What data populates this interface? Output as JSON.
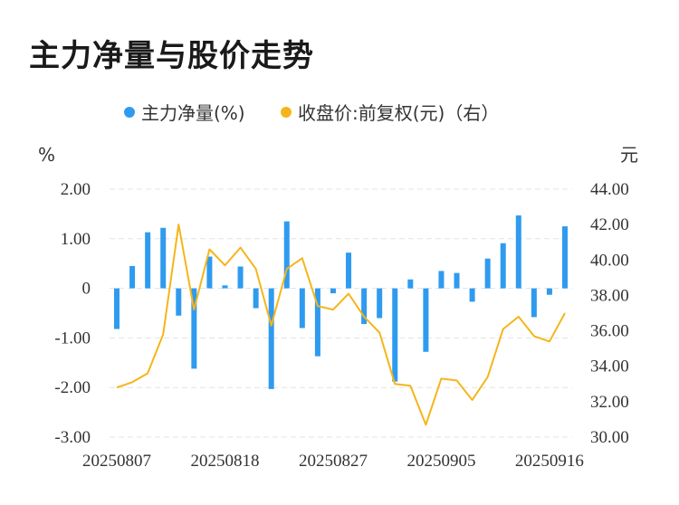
{
  "title": "主力净量与股价走势",
  "chart_data": {
    "type": "bar+line",
    "legend": [
      {
        "label": "主力净量(%)",
        "color": "#2f9bef"
      },
      {
        "label": "收盘价:前复权(元)（右）",
        "color": "#f5b51a"
      }
    ],
    "left_unit": "%",
    "right_unit": "元",
    "left_axis": {
      "ylim": [
        -3.0,
        2.0
      ],
      "ticks": [
        "2.00",
        "1.00",
        "0",
        "-1.00",
        "-2.00",
        "-3.00"
      ],
      "tick_values": [
        2,
        1,
        0,
        -1,
        -2,
        -3
      ]
    },
    "right_axis": {
      "ylim": [
        30.0,
        44.0
      ],
      "ticks": [
        "44.00",
        "42.00",
        "40.00",
        "38.00",
        "36.00",
        "34.00",
        "32.00",
        "30.00"
      ],
      "tick_values": [
        44,
        42,
        40,
        38,
        36,
        34,
        32,
        30
      ]
    },
    "x_labels": [
      {
        "index": 0,
        "label": "20250807"
      },
      {
        "index": 7,
        "label": "20250818"
      },
      {
        "index": 14,
        "label": "20250827"
      },
      {
        "index": 21,
        "label": "20250905"
      },
      {
        "index": 28,
        "label": "20250916"
      }
    ],
    "series": [
      {
        "name": "主力净量(%)",
        "type": "bar",
        "axis": "left",
        "values": [
          -0.82,
          0.45,
          1.13,
          1.22,
          -0.55,
          -1.62,
          0.64,
          0.06,
          0.44,
          -0.4,
          -2.03,
          1.35,
          -0.8,
          -1.37,
          -0.1,
          0.72,
          -0.72,
          -0.6,
          -1.88,
          0.18,
          -1.28,
          0.35,
          0.31,
          -0.27,
          0.6,
          0.91,
          1.47,
          -0.58,
          -0.13,
          1.25
        ]
      },
      {
        "name": "收盘价:前复权(元)（右）",
        "type": "line",
        "axis": "right",
        "values": [
          32.8,
          33.1,
          33.6,
          35.8,
          42.0,
          37.2,
          40.6,
          39.7,
          40.7,
          39.5,
          36.3,
          39.5,
          40.1,
          37.4,
          37.2,
          38.1,
          36.8,
          35.9,
          33.0,
          32.9,
          30.7,
          33.3,
          33.2,
          32.1,
          33.4,
          36.1,
          36.8,
          35.7,
          35.4,
          37.0
        ]
      }
    ]
  }
}
